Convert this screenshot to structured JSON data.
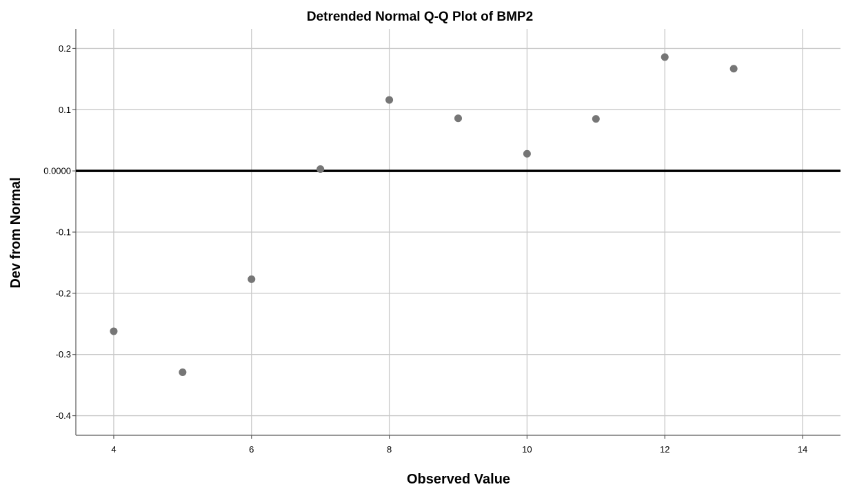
{
  "chart_data": {
    "type": "scatter",
    "title": "Detrended Normal Q-Q Plot of BMP2",
    "xlabel": "Observed Value",
    "ylabel": "Dev from Normal",
    "xlim": [
      3.45,
      14.55
    ],
    "ylim": [
      -0.432,
      0.232
    ],
    "x_ticks": [
      4,
      6,
      8,
      10,
      12,
      14
    ],
    "x_tick_labels": [
      "4",
      "6",
      "8",
      "10",
      "12",
      "14"
    ],
    "y_ticks": [
      0.2,
      0.1,
      0.0,
      -0.1,
      -0.2,
      -0.3,
      -0.4
    ],
    "y_tick_labels": [
      "0.2",
      "0.1",
      "0.0000",
      "-0.1",
      "-0.2",
      "-0.3",
      "-0.4"
    ],
    "reference_line_y": 0.0,
    "grid": true,
    "marker_color": "#767676",
    "reference_line_color": "#000000",
    "points": [
      {
        "x": 4,
        "y": -0.262
      },
      {
        "x": 5,
        "y": -0.329
      },
      {
        "x": 6,
        "y": -0.177
      },
      {
        "x": 7,
        "y": 0.003
      },
      {
        "x": 8,
        "y": 0.116
      },
      {
        "x": 9,
        "y": 0.086
      },
      {
        "x": 10,
        "y": 0.028
      },
      {
        "x": 11,
        "y": 0.085
      },
      {
        "x": 12,
        "y": 0.186
      },
      {
        "x": 13,
        "y": 0.167
      }
    ]
  }
}
